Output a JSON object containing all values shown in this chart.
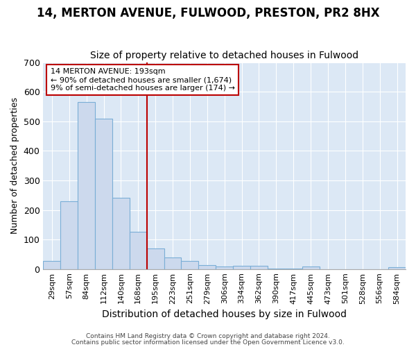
{
  "title1": "14, MERTON AVENUE, FULWOOD, PRESTON, PR2 8HX",
  "title2": "Size of property relative to detached houses in Fulwood",
  "xlabel": "Distribution of detached houses by size in Fulwood",
  "ylabel": "Number of detached properties",
  "categories": [
    "29sqm",
    "57sqm",
    "84sqm",
    "112sqm",
    "140sqm",
    "168sqm",
    "195sqm",
    "223sqm",
    "251sqm",
    "279sqm",
    "306sqm",
    "334sqm",
    "362sqm",
    "390sqm",
    "417sqm",
    "445sqm",
    "473sqm",
    "501sqm",
    "528sqm",
    "556sqm",
    "584sqm"
  ],
  "values": [
    28,
    230,
    565,
    508,
    242,
    127,
    70,
    40,
    27,
    14,
    8,
    11,
    10,
    2,
    2,
    8,
    0,
    0,
    0,
    0,
    7
  ],
  "bar_color": "#ccd9ed",
  "bar_edge_color": "#7aaed6",
  "vline_index": 6,
  "vline_color": "#bb0000",
  "annotation_line1": "14 MERTON AVENUE: 193sqm",
  "annotation_line2": "← 90% of detached houses are smaller (1,674)",
  "annotation_line3": "9% of semi-detached houses are larger (174) →",
  "annotation_box_color": "#ffffff",
  "annotation_box_edge": "#bb0000",
  "ylim": [
    0,
    700
  ],
  "yticks": [
    0,
    100,
    200,
    300,
    400,
    500,
    600,
    700
  ],
  "background_color": "#dce8f5",
  "grid_color": "#ffffff",
  "title1_fontsize": 12,
  "title2_fontsize": 10,
  "xlabel_fontsize": 10,
  "ylabel_fontsize": 9,
  "footer1": "Contains HM Land Registry data © Crown copyright and database right 2024.",
  "footer2": "Contains public sector information licensed under the Open Government Licence v3.0."
}
